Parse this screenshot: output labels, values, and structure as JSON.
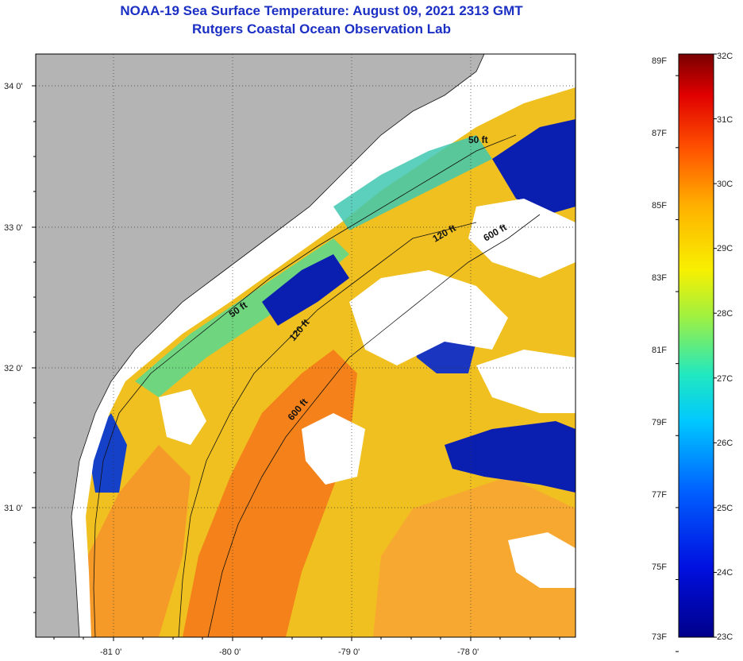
{
  "header": {
    "title": "NOAA-19 Sea Surface Temperature:  August 09, 2021 2313 GMT",
    "subtitle": "Rutgers Coastal Ocean Observation Lab"
  },
  "map": {
    "lon_ticks": [
      "-81 0'",
      "-80 0'",
      "-79 0'",
      "-78 0'"
    ],
    "lat_ticks": [
      "34 0'",
      "33 0'",
      "32 0'",
      "31 0'"
    ],
    "contour_labels": [
      "50 ft",
      "50 ft",
      "120 ft",
      "120 ft",
      "600 ft",
      "600 ft"
    ],
    "colors": {
      "land": "#b4b4b4",
      "cloud": "#ffffff",
      "cold": "#0a1fb0",
      "cool": "#28a8e0",
      "mid": "#48d890",
      "warm_yellow": "#f0e020",
      "warm_orange": "#f8a020",
      "hot_orange": "#f47a18"
    }
  },
  "colorbar": {
    "fahrenheit_labels": [
      "89F",
      "87F",
      "85F",
      "83F",
      "81F",
      "79F",
      "77F",
      "75F",
      "73F"
    ],
    "celsius_labels": [
      "32C",
      "31C",
      "30C",
      "29C",
      "28C",
      "27C",
      "26C",
      "25C",
      "24C",
      "23C"
    ],
    "range_c": [
      23,
      32
    ],
    "range_f": [
      73,
      89
    ]
  }
}
